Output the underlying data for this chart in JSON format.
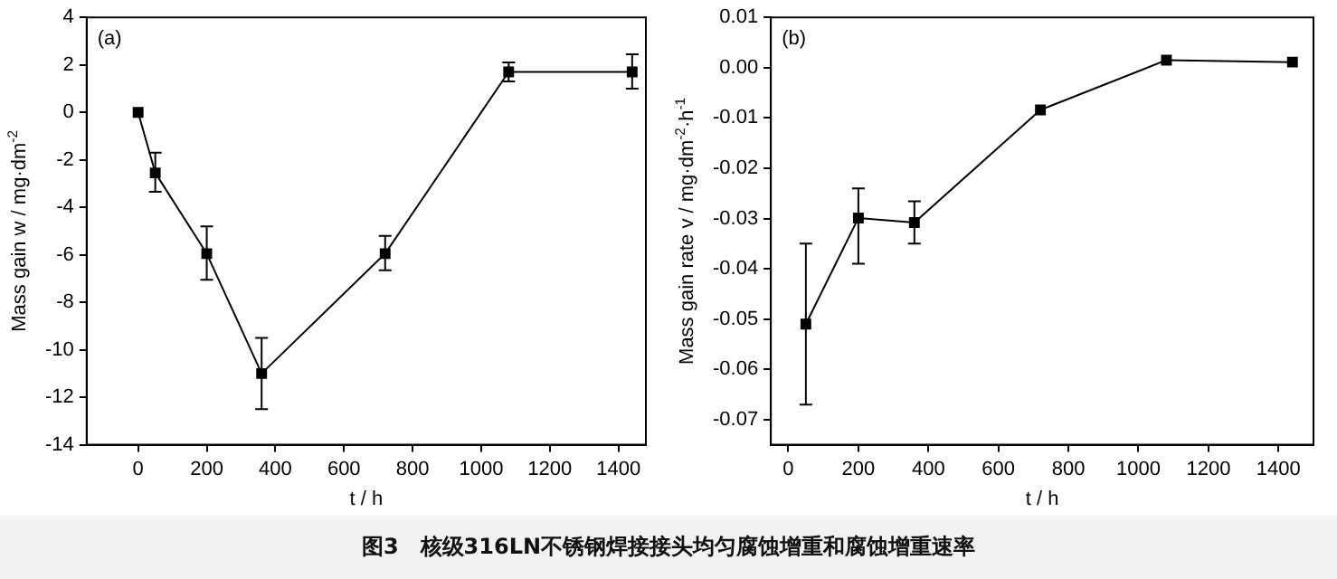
{
  "chart_data": [
    {
      "type": "line",
      "xlabel": "t / h",
      "ylabel": "Mass gain w / mg·dm$^{-2}$",
      "x": [
        0,
        50,
        200,
        360,
        720,
        1080,
        1440
      ],
      "series": [
        {
          "color": "#000000",
          "values": [
            0,
            -2.55,
            -5.95,
            -11.0,
            -5.95,
            1.7,
            1.7
          ],
          "errors": [
            null,
            [
              -3.35,
              -1.7
            ],
            [
              -7.05,
              -4.8
            ],
            [
              -12.5,
              -9.5
            ],
            [
              -6.65,
              -5.2
            ],
            [
              1.3,
              2.1
            ],
            [
              1.0,
              2.45
            ]
          ]
        }
      ],
      "xlim": [
        -150,
        1480
      ],
      "xticks": [
        0,
        200,
        400,
        600,
        800,
        1000,
        1200,
        1400
      ],
      "ylim": [
        -14,
        4
      ],
      "yticks": [
        -14,
        -12,
        -10,
        -8,
        -6,
        -4,
        -2,
        0,
        2,
        4
      ],
      "marker": "square",
      "line_style": "solid",
      "grid": false,
      "legend": false,
      "annotations": [
        "(a)",
        "图3　核级316LN不锈钢焊接接头均匀腐蚀增重和腐蚀增重速率"
      ]
    },
    {
      "type": "line",
      "xlabel": "t / h",
      "ylabel": "Mass gain rate v / mg·dm$^{-2}$·h$^{-1}$",
      "x": [
        50,
        200,
        360,
        720,
        1080,
        1440
      ],
      "series": [
        {
          "color": "#000000",
          "values": [
            -0.051,
            -0.0299,
            -0.0308,
            -0.0084,
            0.0015,
            0.0011
          ],
          "errors": [
            [
              -0.067,
              -0.035
            ],
            [
              -0.039,
              -0.024
            ],
            [
              -0.035,
              -0.0266
            ],
            null,
            null,
            null
          ]
        }
      ],
      "xlim": [
        -50,
        1500
      ],
      "xticks": [
        0,
        200,
        400,
        600,
        800,
        1000,
        1200,
        1400
      ],
      "ylim": [
        -0.075,
        0.01
      ],
      "yticks": [
        {
          "value": -0.07,
          "label": "-0.07"
        },
        {
          "value": -0.06,
          "label": "-0.06"
        },
        {
          "value": -0.05,
          "label": "-0.05"
        },
        {
          "value": -0.04,
          "label": "-0.04"
        },
        {
          "value": -0.03,
          "label": "-0.03"
        },
        {
          "value": -0.02,
          "label": "-0.02"
        },
        {
          "value": -0.01,
          "label": "-0.01"
        },
        {
          "value": 0,
          "label": "0.00"
        },
        {
          "value": 0.01,
          "label": "0.01"
        }
      ],
      "marker": "square",
      "line_style": "solid",
      "grid": false,
      "legend": false,
      "annotations": [
        "(b)"
      ]
    }
  ]
}
